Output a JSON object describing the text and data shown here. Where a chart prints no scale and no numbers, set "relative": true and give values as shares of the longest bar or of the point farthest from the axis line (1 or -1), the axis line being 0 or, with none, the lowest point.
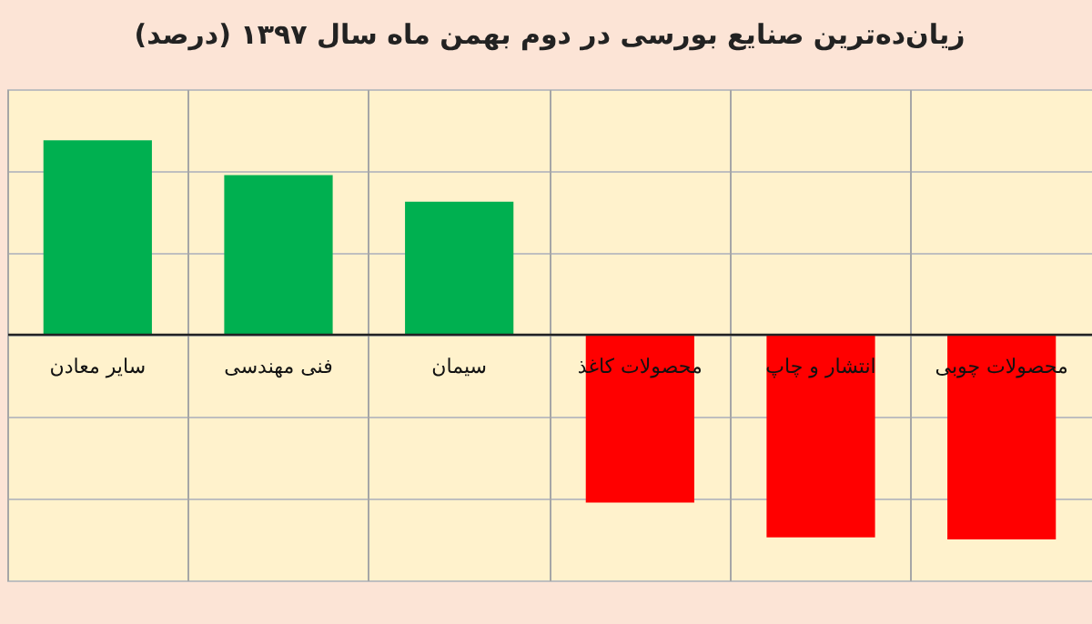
{
  "chart_data": {
    "type": "bar",
    "title": "زیان‌ده‌ترین صنایع بورسی در دوم بهمن ماه سال ۱۳۹۷ (درصد)",
    "categories": [
      "سایر معادن",
      "فنی مهندسی",
      "سیمان",
      "محصولات کاغذ",
      "انتشار و چاپ",
      "محصولات چوبی"
    ],
    "values": [
      0.95,
      0.78,
      0.65,
      -0.82,
      -0.99,
      -1
    ],
    "colors": [
      "#00b050",
      "#00b050",
      "#00b050",
      "#ff0000",
      "#ff0000",
      "#ff0000"
    ],
    "relative": true,
    "grid": true
  }
}
